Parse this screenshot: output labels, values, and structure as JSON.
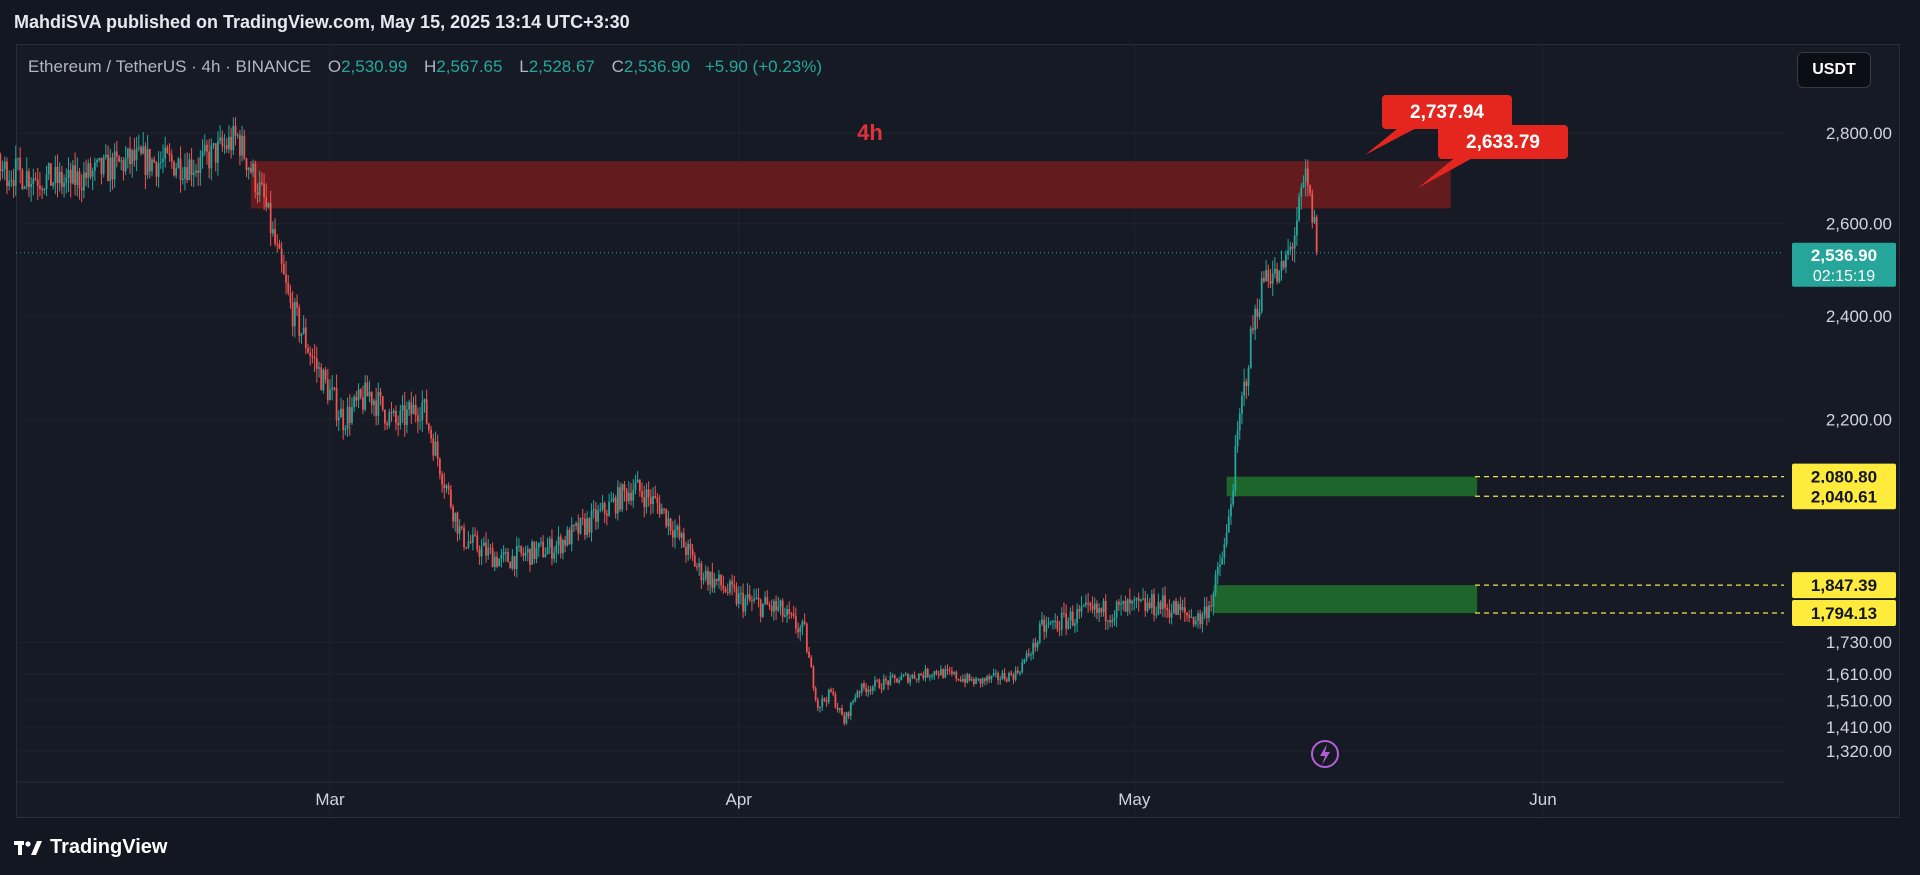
{
  "header": {
    "published": "MahdiSVA published on TradingView.com, May 15, 2025 13:14 UTC+3:30"
  },
  "legend": {
    "symbol": "Ethereum / TetherUS · 4h · BINANCE",
    "open_label": "O",
    "open": "2,530.99",
    "high_label": "H",
    "high": "2,567.65",
    "low_label": "L",
    "low": "2,528.67",
    "close_label": "C",
    "close": "2,536.90",
    "change": "+5.90 (+0.23%)"
  },
  "currency_button": "USDT",
  "footer": {
    "brand": "TradingView",
    "logo_icon": "tradingview-logo-icon"
  },
  "colors": {
    "background": "#161a25",
    "up": "#26a69a",
    "down": "#ef5350",
    "resistance_zone": "#6b1b1d",
    "support_zone": "#1e6b2a",
    "callout": "#e5261e",
    "level_badge": "#ffeb3b",
    "price_badge": "#26a69a"
  },
  "chart_data": {
    "type": "candlestick",
    "symbol": "ETHUSDT",
    "timeframe": "4h",
    "annotation_label": "4h",
    "ylim": [
      1280,
      2880
    ],
    "y_ticks": [
      {
        "value": 2800,
        "label": "2,800.00"
      },
      {
        "value": 2600,
        "label": "2,600.00"
      },
      {
        "value": 2400,
        "label": "2,400.00"
      },
      {
        "value": 2200,
        "label": "2,200.00"
      },
      {
        "value": 1730,
        "label": "1,730.00"
      },
      {
        "value": 1610,
        "label": "1,610.00"
      },
      {
        "value": 1510,
        "label": "1,510.00"
      },
      {
        "value": 1410,
        "label": "1,410.00"
      },
      {
        "value": 1320,
        "label": "1,320.00"
      }
    ],
    "y_scale": [
      [
        1320,
        1320
      ],
      [
        1410,
        1410
      ],
      [
        1510,
        1510
      ],
      [
        1610,
        1610
      ],
      [
        1730,
        1730
      ],
      [
        1794.13,
        1840
      ],
      [
        1847.39,
        1945
      ],
      [
        2040.61,
        2280
      ],
      [
        2080.8,
        2354
      ],
      [
        2200,
        2570
      ],
      [
        2400,
        2960
      ],
      [
        2600,
        3307
      ],
      [
        2800,
        3649
      ]
    ],
    "x_labels": [
      {
        "date": "2025-03-01",
        "label": "Mar"
      },
      {
        "date": "2025-04-01",
        "label": "Apr"
      },
      {
        "date": "2025-05-01",
        "label": "May"
      },
      {
        "date": "2025-06-01",
        "label": "Jun"
      }
    ],
    "xlim": [
      "2025-01-25",
      "2025-06-22"
    ],
    "last_price": {
      "value": 2536.9,
      "label": "2,536.90",
      "countdown": "02:15:19"
    },
    "zones": [
      {
        "name": "resistance",
        "top": 2737.94,
        "bottom": 2633.79,
        "start": "2025-02-23",
        "end": "2025-05-25"
      },
      {
        "name": "support-upper",
        "top": 2080.8,
        "bottom": 2040.61,
        "start": "2025-05-08",
        "end": "2025-05-27"
      },
      {
        "name": "support-lower",
        "top": 1847.39,
        "bottom": 1794.13,
        "start": "2025-05-07",
        "end": "2025-05-27"
      }
    ],
    "callouts": [
      {
        "value": 2737.94,
        "label": "2,737.94"
      },
      {
        "value": 2633.79,
        "label": "2,633.79"
      }
    ],
    "level_badges": [
      {
        "value": 2080.8,
        "label": "2,080.80"
      },
      {
        "value": 2040.61,
        "label": "2,040.61"
      },
      {
        "value": 1847.39,
        "label": "1,847.39"
      },
      {
        "value": 1794.13,
        "label": "1,794.13"
      }
    ],
    "path": [
      [
        "2025-01-25",
        2760
      ],
      [
        "2025-01-30",
        2700
      ],
      [
        "2025-02-04",
        2720
      ],
      [
        "2025-02-09",
        2690
      ],
      [
        "2025-02-14",
        2740
      ],
      [
        "2025-02-19",
        2730
      ],
      [
        "2025-02-22",
        2790
      ],
      [
        "2025-02-24",
        2650
      ],
      [
        "2025-02-26",
        2420
      ],
      [
        "2025-02-28",
        2300
      ],
      [
        "2025-03-02",
        2200
      ],
      [
        "2025-03-04",
        2250
      ],
      [
        "2025-03-06",
        2190
      ],
      [
        "2025-03-08",
        2230
      ],
      [
        "2025-03-11",
        1950
      ],
      [
        "2025-03-14",
        1900
      ],
      [
        "2025-03-18",
        1930
      ],
      [
        "2025-03-21",
        1990
      ],
      [
        "2025-03-24",
        2060
      ],
      [
        "2025-03-26",
        2020
      ],
      [
        "2025-03-29",
        1880
      ],
      [
        "2025-04-01",
        1820
      ],
      [
        "2025-04-04",
        1800
      ],
      [
        "2025-04-06",
        1750
      ],
      [
        "2025-04-07",
        1490
      ],
      [
        "2025-04-08",
        1540
      ],
      [
        "2025-04-09",
        1430
      ],
      [
        "2025-04-10",
        1550
      ],
      [
        "2025-04-13",
        1590
      ],
      [
        "2025-04-16",
        1620
      ],
      [
        "2025-04-19",
        1580
      ],
      [
        "2025-04-22",
        1610
      ],
      [
        "2025-04-24",
        1760
      ],
      [
        "2025-04-27",
        1790
      ],
      [
        "2025-04-30",
        1800
      ],
      [
        "2025-05-03",
        1810
      ],
      [
        "2025-05-06",
        1780
      ],
      [
        "2025-05-07",
        1830
      ],
      [
        "2025-05-08",
        1950
      ],
      [
        "2025-05-09",
        2200
      ],
      [
        "2025-05-10",
        2380
      ],
      [
        "2025-05-11",
        2500
      ],
      [
        "2025-05-12",
        2480
      ],
      [
        "2025-05-13",
        2560
      ],
      [
        "2025-05-14",
        2700
      ],
      [
        "2025-05-15",
        2537
      ]
    ]
  }
}
